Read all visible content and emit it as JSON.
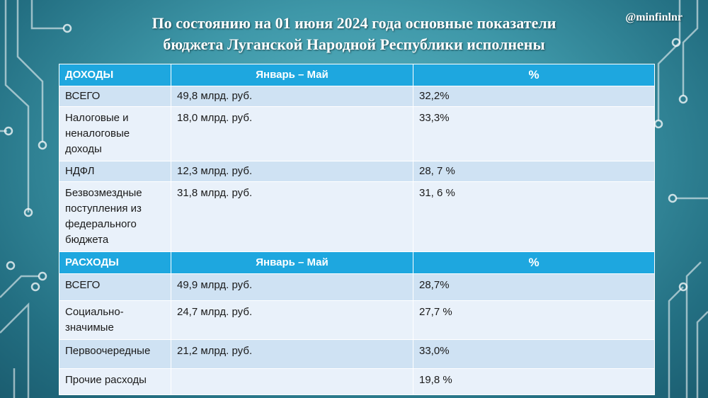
{
  "header": {
    "title_line1": "По состоянию на 01 июня 2024 года основные показатели",
    "title_line2": "бюджета Луганской Народной Республики исполнены",
    "handle": "@minfinlnr"
  },
  "income": {
    "header": {
      "label": "ДОХОДЫ",
      "period": "Январь – Май",
      "percent": "%"
    },
    "rows": [
      {
        "name": "ВСЕГО",
        "amount": "49,8 млрд. руб.",
        "percent": "32,2%"
      },
      {
        "name": "Налоговые и неналоговые доходы",
        "amount": "18,0 млрд. руб.",
        "percent": "33,3%"
      },
      {
        "name": "НДФЛ",
        "amount": "12,3 млрд. руб.",
        "percent": "28, 7 %"
      },
      {
        "name": "Безвозмездные поступления из федерального бюджета",
        "amount": "31,8 млрд. руб.",
        "percent": "31, 6 %"
      }
    ]
  },
  "expenses": {
    "header": {
      "label": "РАСХОДЫ",
      "period": "Январь – Май",
      "percent": "%"
    },
    "rows": [
      {
        "name": "ВСЕГО",
        "amount": "49,9 млрд. руб.",
        "percent": "28,7%"
      },
      {
        "name": "Социально-значимые",
        "amount": "24,7 млрд. руб.",
        "percent": "27,7 %"
      },
      {
        "name": "Первоочередные",
        "amount": "21,2 млрд. руб.",
        "percent": "33,0%"
      },
      {
        "name": "Прочие расходы",
        "amount": "",
        "percent": "19,8 %"
      }
    ]
  },
  "colors": {
    "header_bg": "#1ea7df",
    "row_odd": "#cfe2f3",
    "row_even": "#e9f1fa",
    "background": "#3e97a8"
  }
}
